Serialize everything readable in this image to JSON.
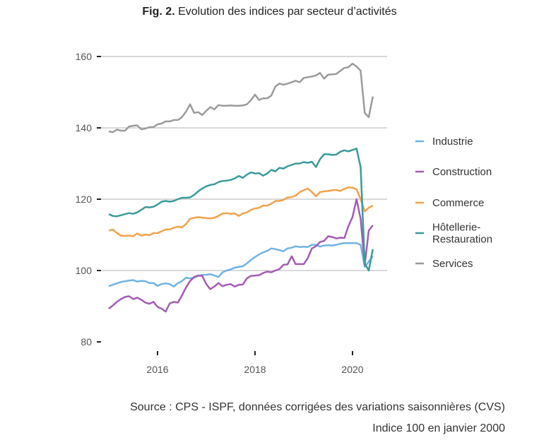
{
  "chart_data": {
    "type": "line",
    "title_prefix": "Fig. 2.",
    "title": "Evolution des indices par secteur d’activités",
    "x_start": "2015-01",
    "x_frequency": "monthly",
    "x_ticks": [
      "2016",
      "2018",
      "2020"
    ],
    "y_ticks": [
      80,
      100,
      120,
      140,
      160
    ],
    "ylim": [
      80,
      160
    ],
    "grid": "horizontal",
    "legend_position": "right",
    "series": [
      {
        "name": "Industrie",
        "color": "#6fb3e6",
        "values": [
          95.6,
          96,
          96.4,
          96.8,
          97,
          97.2,
          97.3,
          96.9,
          97.1,
          97,
          96.5,
          96.5,
          95.7,
          96.2,
          96.4,
          96.2,
          95.5,
          96.5,
          97,
          98,
          97.8,
          98,
          98.5,
          98.8,
          98.8,
          99,
          98.6,
          98.2,
          99.5,
          100,
          100.3,
          100.8,
          101,
          101.2,
          102,
          103,
          103.8,
          104.5,
          105.1,
          105.5,
          106.2,
          106,
          105.7,
          105.4,
          106.2,
          106.4,
          106.8,
          106.6,
          106.7,
          106.6,
          107.2,
          107.2,
          106.7,
          107,
          107.1,
          107,
          107.2,
          107.5,
          107.7,
          107.7,
          107.7,
          107.7,
          107.2,
          101,
          102.5,
          104
        ]
      },
      {
        "name": "Construction",
        "color": "#a45bb5",
        "values": [
          89.3,
          90.2,
          91.2,
          92,
          92.6,
          92.8,
          92,
          92.4,
          91.8,
          91,
          90.7,
          91.2,
          89.8,
          89.3,
          88.5,
          90.8,
          91.2,
          91,
          93,
          95.2,
          97,
          98.2,
          98.6,
          98.5,
          96.2,
          94.8,
          95.5,
          96.5,
          95.6,
          96,
          96.2,
          95.5,
          96,
          96.1,
          97.8,
          98.5,
          98.6,
          98.7,
          99.3,
          99.7,
          99.5,
          100,
          100.4,
          101.6,
          101.7,
          104,
          101.8,
          101.8,
          101.8,
          103.5,
          106.2,
          106.8,
          108,
          108.3,
          109.6,
          109.4,
          109,
          109.2,
          109.1,
          112.5,
          115,
          120,
          114.5,
          101.5,
          111.2,
          112.7
        ]
      },
      {
        "name": "Commerce",
        "color": "#f3a24a",
        "values": [
          111.2,
          111.5,
          110.5,
          109.8,
          109.7,
          109.8,
          109.6,
          110.4,
          109.8,
          110.1,
          109.9,
          110.5,
          110.5,
          111,
          111.5,
          111.5,
          112,
          112.3,
          112.1,
          113,
          114.5,
          114.8,
          115,
          114.8,
          114.7,
          114.6,
          114.8,
          115.3,
          116,
          116.1,
          115.9,
          116,
          115.3,
          116,
          116.3,
          117,
          117.4,
          117.6,
          118.2,
          118.2,
          118.7,
          119.5,
          119.5,
          119.8,
          120.5,
          120.6,
          121,
          122,
          122.5,
          123,
          122,
          120.8,
          122,
          122.2,
          122.3,
          122.5,
          122.6,
          122.3,
          122.9,
          123.3,
          123.2,
          122.8,
          120,
          116.6,
          117.6,
          118.2
        ]
      },
      {
        "name": "Hôtellerie-Restauration",
        "label_lines": [
          "Hôtellerie-",
          "Restauration"
        ],
        "color": "#3a9a9a",
        "values": [
          115.8,
          115.3,
          115.2,
          115.5,
          115.8,
          116.1,
          115.9,
          116.3,
          117,
          117.8,
          117.7,
          117.9,
          118.5,
          119.3,
          119.5,
          119.3,
          119.5,
          120,
          120.4,
          120.4,
          120.5,
          121.2,
          122.2,
          123,
          123.6,
          124,
          124.2,
          124.8,
          125.1,
          125.2,
          125.4,
          125.8,
          126.5,
          126,
          126.9,
          127.5,
          127.2,
          127.3,
          126.6,
          127.2,
          128.2,
          127.8,
          128.8,
          128.6,
          129.2,
          129.6,
          130,
          130,
          130.4,
          130.2,
          130.5,
          129,
          131.2,
          132.6,
          132.6,
          132.4,
          132.5,
          133.3,
          133.7,
          133.4,
          133.8,
          134.2,
          129,
          102,
          100,
          106
        ]
      },
      {
        "name": "Services",
        "color": "#9b9b9b",
        "values": [
          139,
          138.8,
          139.5,
          139.2,
          139.2,
          140.4,
          140.6,
          140.7,
          139.6,
          139.8,
          140.2,
          140.2,
          141,
          141.2,
          141.8,
          141.8,
          142.2,
          142.2,
          143,
          144.5,
          146.6,
          144.2,
          144.4,
          143.6,
          144.8,
          145.8,
          145.2,
          146.4,
          146.2,
          146.2,
          146.3,
          146.2,
          146.2,
          146.3,
          146.6,
          147.8,
          149.3,
          147.8,
          148.3,
          148.3,
          149,
          151.6,
          152.4,
          152.1,
          152.4,
          152.8,
          153.2,
          152.8,
          154,
          154.2,
          154.4,
          154.7,
          155.4,
          153.8,
          154.9,
          155,
          155.1,
          156,
          156.8,
          157,
          158,
          157.2,
          156,
          144.2,
          143,
          148.8
        ]
      }
    ],
    "source": "Source : CPS - ISPF, données corrigées des variations saisonnières (CVS)",
    "note": "Indice 100 en janvier 2000"
  }
}
